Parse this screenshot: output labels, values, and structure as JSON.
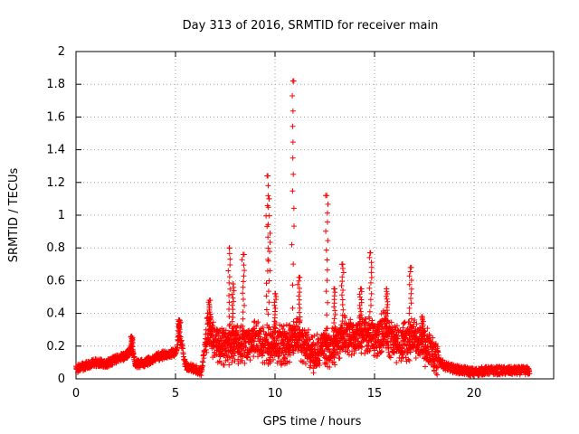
{
  "chart_data": {
    "type": "scatter",
    "title": "Day 313 of 2016, SRMTID for receiver main",
    "xlabel": "GPS time / hours",
    "ylabel": "SRMTID / TECUs",
    "xlim": [
      0,
      24
    ],
    "ylim": [
      0,
      2
    ],
    "xticks": [
      0,
      5,
      10,
      15,
      20
    ],
    "xtick_labels": [
      "0",
      "5",
      "10",
      "15",
      "20"
    ],
    "yticks": [
      0,
      0.2,
      0.4,
      0.6,
      0.8,
      1,
      1.2,
      1.4,
      1.6,
      1.8,
      2
    ],
    "ytick_labels": [
      "0",
      "0.2",
      "0.4",
      "0.6",
      "0.8",
      "1",
      "1.2",
      "1.4",
      "1.6",
      "1.8",
      "2"
    ],
    "grid": true,
    "marker": "+",
    "marker_color": "#ff0000",
    "baseline_series": {
      "name": "SRMTID",
      "x": [
        0.0,
        0.5,
        1.0,
        1.5,
        2.0,
        2.5,
        2.8,
        3.0,
        3.5,
        4.0,
        4.5,
        5.0,
        5.2,
        5.5,
        6.0,
        6.3,
        6.6,
        7.0,
        7.5,
        8.0,
        8.5,
        9.0,
        9.5,
        10.0,
        10.5,
        11.0,
        11.5,
        12.0,
        12.5,
        13.0,
        13.5,
        14.0,
        14.5,
        15.0,
        15.5,
        16.0,
        16.5,
        17.0,
        17.5,
        18.0,
        18.5,
        19.0,
        19.5,
        20.0,
        20.5,
        21.0,
        21.5,
        22.0,
        22.5,
        22.8
      ],
      "y": [
        0.06,
        0.08,
        0.1,
        0.09,
        0.12,
        0.14,
        0.18,
        0.09,
        0.1,
        0.13,
        0.15,
        0.16,
        0.28,
        0.08,
        0.06,
        0.04,
        0.3,
        0.22,
        0.2,
        0.22,
        0.2,
        0.25,
        0.2,
        0.22,
        0.2,
        0.25,
        0.22,
        0.15,
        0.2,
        0.18,
        0.28,
        0.25,
        0.28,
        0.25,
        0.3,
        0.22,
        0.22,
        0.25,
        0.2,
        0.15,
        0.08,
        0.06,
        0.05,
        0.04,
        0.05,
        0.05,
        0.05,
        0.05,
        0.05,
        0.05
      ]
    },
    "spikes": [
      {
        "x": 2.8,
        "y": 0.26
      },
      {
        "x": 5.2,
        "y": 0.36
      },
      {
        "x": 6.7,
        "y": 0.48
      },
      {
        "x": 7.7,
        "y": 0.8
      },
      {
        "x": 7.9,
        "y": 0.58
      },
      {
        "x": 8.4,
        "y": 0.76
      },
      {
        "x": 9.6,
        "y": 1.24
      },
      {
        "x": 9.7,
        "y": 1.1
      },
      {
        "x": 10.0,
        "y": 0.52
      },
      {
        "x": 10.9,
        "y": 1.82
      },
      {
        "x": 11.2,
        "y": 0.62
      },
      {
        "x": 12.6,
        "y": 1.12
      },
      {
        "x": 13.0,
        "y": 0.55
      },
      {
        "x": 13.4,
        "y": 0.7
      },
      {
        "x": 14.3,
        "y": 0.55
      },
      {
        "x": 14.8,
        "y": 0.77
      },
      {
        "x": 15.6,
        "y": 0.55
      },
      {
        "x": 16.8,
        "y": 0.68
      },
      {
        "x": 17.4,
        "y": 0.38
      }
    ]
  }
}
